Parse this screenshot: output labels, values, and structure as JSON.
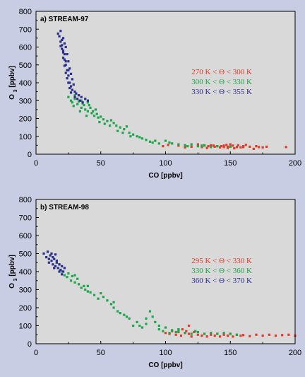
{
  "chart_data": [
    {
      "type": "scatter",
      "title": "a) STREAM-97",
      "xlabel": "CO [ppbv]",
      "ylabel_main": "O",
      "ylabel_sub": "3",
      "ylabel_tail": " [ppbv]",
      "xlim": [
        0,
        200
      ],
      "ylim": [
        0,
        800
      ],
      "xticks": [
        0,
        50,
        100,
        150,
        200
      ],
      "yticks": [
        0,
        100,
        200,
        300,
        400,
        500,
        600,
        700,
        800
      ],
      "legend_position": "right",
      "series": [
        {
          "name": "270 K < Θ < 300 K",
          "color": "#e03a28",
          "points": [
            [
              98,
              45
            ],
            [
              102,
              52
            ],
            [
              110,
              48
            ],
            [
              115,
              38
            ],
            [
              120,
              42
            ],
            [
              125,
              55
            ],
            [
              128,
              40
            ],
            [
              130,
              48
            ],
            [
              132,
              35
            ],
            [
              135,
              50
            ],
            [
              138,
              42
            ],
            [
              140,
              45
            ],
            [
              142,
              38
            ],
            [
              145,
              48
            ],
            [
              147,
              52
            ],
            [
              148,
              35
            ],
            [
              150,
              42
            ],
            [
              152,
              48
            ],
            [
              155,
              40
            ],
            [
              156,
              50
            ],
            [
              158,
              38
            ],
            [
              160,
              45
            ],
            [
              162,
              52
            ],
            [
              165,
              42
            ],
            [
              168,
              30
            ],
            [
              170,
              45
            ],
            [
              172,
              40
            ],
            [
              175,
              38
            ],
            [
              178,
              42
            ],
            [
              193,
              40
            ],
            [
              145,
              40
            ],
            [
              150,
              55
            ],
            [
              153,
              33
            ],
            [
              143,
              45
            ],
            [
              137,
              48
            ],
            [
              148,
              42
            ],
            [
              160,
              40
            ],
            [
              133,
              45
            ]
          ]
        },
        {
          "name": "300 K < Θ < 330 K",
          "color": "#1aa64a",
          "points": [
            [
              25,
              320
            ],
            [
              27,
              300
            ],
            [
              28,
              290
            ],
            [
              30,
              310
            ],
            [
              32,
              280
            ],
            [
              33,
              295
            ],
            [
              35,
              260
            ],
            [
              35,
              300
            ],
            [
              37,
              275
            ],
            [
              38,
              250
            ],
            [
              40,
              240
            ],
            [
              40,
              290
            ],
            [
              42,
              260
            ],
            [
              43,
              230
            ],
            [
              45,
              215
            ],
            [
              46,
              250
            ],
            [
              48,
              205
            ],
            [
              50,
              210
            ],
            [
              52,
              195
            ],
            [
              55,
              185
            ],
            [
              58,
              190
            ],
            [
              60,
              175
            ],
            [
              62,
              160
            ],
            [
              65,
              150
            ],
            [
              68,
              140
            ],
            [
              70,
              155
            ],
            [
              72,
              120
            ],
            [
              75,
              110
            ],
            [
              78,
              100
            ],
            [
              80,
              95
            ],
            [
              82,
              88
            ],
            [
              85,
              80
            ],
            [
              88,
              70
            ],
            [
              90,
              65
            ],
            [
              95,
              60
            ],
            [
              100,
              75
            ],
            [
              105,
              60
            ],
            [
              110,
              55
            ],
            [
              115,
              50
            ],
            [
              120,
              55
            ],
            [
              125,
              45
            ],
            [
              130,
              50
            ],
            [
              135,
              40
            ],
            [
              140,
              45
            ],
            [
              150,
              42
            ],
            [
              29,
              270
            ],
            [
              34,
              240
            ],
            [
              39,
              215
            ],
            [
              44,
              240
            ],
            [
              49,
              180
            ],
            [
              53,
              170
            ],
            [
              57,
              160
            ],
            [
              63,
              130
            ],
            [
              67,
              120
            ],
            [
              73,
              100
            ],
            [
              30,
              330
            ],
            [
              36,
              285
            ],
            [
              41,
              275
            ],
            [
              47,
              225
            ],
            [
              92,
              75
            ],
            [
              103,
              65
            ],
            [
              117,
              45
            ],
            [
              128,
              48
            ]
          ]
        },
        {
          "name": "330 K < Θ < 355 K",
          "color": "#2a2e8c",
          "points": [
            [
              17,
              675
            ],
            [
              18,
              660
            ],
            [
              19,
              690
            ],
            [
              20,
              640
            ],
            [
              20,
              610
            ],
            [
              21,
              650
            ],
            [
              21,
              580
            ],
            [
              22,
              620
            ],
            [
              22,
              560
            ],
            [
              22,
              530
            ],
            [
              23,
              600
            ],
            [
              23,
              500
            ],
            [
              24,
              560
            ],
            [
              24,
              470
            ],
            [
              25,
              520
            ],
            [
              25,
              440
            ],
            [
              26,
              480
            ],
            [
              26,
              400
            ],
            [
              27,
              450
            ],
            [
              27,
              380
            ],
            [
              28,
              420
            ],
            [
              28,
              360
            ],
            [
              29,
              390
            ],
            [
              30,
              350
            ],
            [
              30,
              320
            ],
            [
              31,
              340
            ],
            [
              32,
              310
            ],
            [
              33,
              330
            ],
            [
              34,
              300
            ],
            [
              35,
              320
            ],
            [
              36,
              290
            ],
            [
              38,
              310
            ],
            [
              40,
              300
            ],
            [
              19,
              630
            ],
            [
              20,
              590
            ],
            [
              21,
              540
            ],
            [
              22,
              495
            ],
            [
              23,
              455
            ],
            [
              24,
              425
            ],
            [
              25,
              400
            ],
            [
              26,
              370
            ],
            [
              27,
              345
            ],
            [
              19,
              605
            ],
            [
              21,
              570
            ],
            [
              23,
              520
            ],
            [
              25,
              470
            ]
          ]
        }
      ]
    },
    {
      "type": "scatter",
      "title": "b) STREAM-98",
      "xlabel": "CO [ppbv]",
      "ylabel_main": "O",
      "ylabel_sub": "3",
      "ylabel_tail": " [ppbv]",
      "xlim": [
        0,
        200
      ],
      "ylim": [
        0,
        800
      ],
      "xticks": [
        0,
        50,
        100,
        150,
        200
      ],
      "yticks": [
        0,
        100,
        200,
        300,
        400,
        500,
        600,
        700,
        800
      ],
      "legend_position": "right",
      "series": [
        {
          "name": "295 K < Θ < 330 K",
          "color": "#e03a28",
          "points": [
            [
              100,
              60
            ],
            [
              103,
              55
            ],
            [
              105,
              70
            ],
            [
              108,
              50
            ],
            [
              110,
              65
            ],
            [
              112,
              45
            ],
            [
              115,
              60
            ],
            [
              118,
              55
            ],
            [
              120,
              40
            ],
            [
              122,
              65
            ],
            [
              125,
              50
            ],
            [
              128,
              45
            ],
            [
              130,
              55
            ],
            [
              132,
              40
            ],
            [
              135,
              50
            ],
            [
              138,
              45
            ],
            [
              140,
              55
            ],
            [
              142,
              40
            ],
            [
              145,
              50
            ],
            [
              148,
              45
            ],
            [
              150,
              55
            ],
            [
              152,
              40
            ],
            [
              155,
              50
            ],
            [
              158,
              45
            ],
            [
              160,
              48
            ],
            [
              165,
              42
            ],
            [
              170,
              50
            ],
            [
              175,
              45
            ],
            [
              180,
              50
            ],
            [
              185,
              45
            ],
            [
              190,
              48
            ],
            [
              195,
              50
            ],
            [
              200,
              45
            ],
            [
              113,
              80
            ],
            [
              118,
              100
            ],
            [
              116,
              70
            ]
          ]
        },
        {
          "name": "330 K < Θ < 360 K",
          "color": "#1aa64a",
          "points": [
            [
              18,
              440
            ],
            [
              20,
              400
            ],
            [
              22,
              380
            ],
            [
              24,
              370
            ],
            [
              25,
              390
            ],
            [
              27,
              350
            ],
            [
              28,
              375
            ],
            [
              30,
              340
            ],
            [
              32,
              360
            ],
            [
              33,
              330
            ],
            [
              35,
              310
            ],
            [
              37,
              320
            ],
            [
              38,
              300
            ],
            [
              40,
              290
            ],
            [
              42,
              285
            ],
            [
              45,
              270
            ],
            [
              48,
              250
            ],
            [
              50,
              280
            ],
            [
              52,
              260
            ],
            [
              55,
              240
            ],
            [
              58,
              220
            ],
            [
              60,
              200
            ],
            [
              63,
              180
            ],
            [
              65,
              170
            ],
            [
              68,
              160
            ],
            [
              70,
              150
            ],
            [
              72,
              140
            ],
            [
              75,
              100
            ],
            [
              78,
              120
            ],
            [
              80,
              100
            ],
            [
              82,
              90
            ],
            [
              85,
              110
            ],
            [
              88,
              180
            ],
            [
              90,
              150
            ],
            [
              92,
              120
            ],
            [
              95,
              80
            ],
            [
              98,
              70
            ],
            [
              100,
              90
            ],
            [
              103,
              60
            ],
            [
              105,
              75
            ],
            [
              108,
              65
            ],
            [
              110,
              70
            ],
            [
              115,
              60
            ],
            [
              120,
              55
            ],
            [
              125,
              65
            ],
            [
              130,
              55
            ],
            [
              135,
              60
            ],
            [
              140,
              55
            ],
            [
              145,
              60
            ],
            [
              150,
              55
            ],
            [
              155,
              50
            ],
            [
              30,
              380
            ],
            [
              40,
              320
            ],
            [
              60,
              230
            ],
            [
              85,
              140
            ],
            [
              95,
              100
            ],
            [
              110,
              80
            ],
            [
              123,
              70
            ]
          ]
        },
        {
          "name": "360 K < Θ < 370 K",
          "color": "#2a2e8c",
          "points": [
            [
              6,
              500
            ],
            [
              8,
              480
            ],
            [
              9,
              510
            ],
            [
              10,
              470
            ],
            [
              11,
              490
            ],
            [
              12,
              460
            ],
            [
              13,
              440
            ],
            [
              14,
              470
            ],
            [
              15,
              430
            ],
            [
              16,
              450
            ],
            [
              17,
              420
            ],
            [
              18,
              440
            ],
            [
              19,
              410
            ],
            [
              20,
              430
            ],
            [
              21,
              400
            ],
            [
              22,
              420
            ],
            [
              10,
              450
            ],
            [
              12,
              500
            ],
            [
              14,
              420
            ],
            [
              16,
              460
            ],
            [
              18,
              400
            ],
            [
              13,
              480
            ],
            [
              15,
              495
            ],
            [
              20,
              385
            ]
          ]
        }
      ]
    }
  ]
}
